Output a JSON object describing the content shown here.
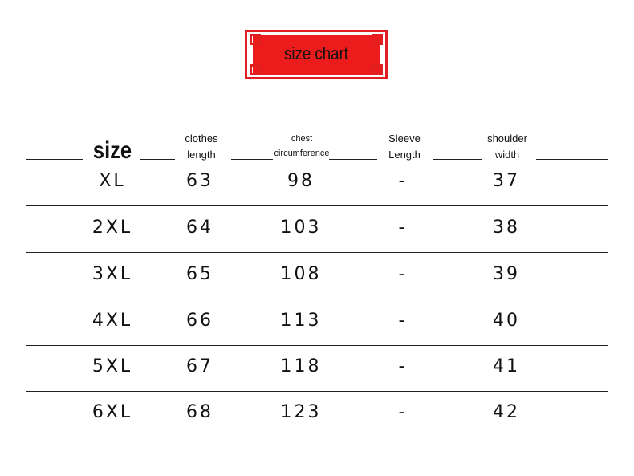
{
  "title": "size chart",
  "colors": {
    "banner": "#ec1c1c",
    "text": "#111111"
  },
  "headers": {
    "size": "size",
    "clothes_length": [
      "clothes",
      "length"
    ],
    "chest": [
      "chest",
      "circumference"
    ],
    "sleeve": [
      "Sleeve",
      "Length"
    ],
    "shoulder": [
      "shoulder",
      "width"
    ]
  },
  "rows": [
    {
      "size": "XL",
      "clothes_length": "63",
      "chest": "98",
      "sleeve": "-",
      "shoulder": "37"
    },
    {
      "size": "2XL",
      "clothes_length": "64",
      "chest": "103",
      "sleeve": "-",
      "shoulder": "38"
    },
    {
      "size": "3XL",
      "clothes_length": "65",
      "chest": "108",
      "sleeve": "-",
      "shoulder": "39"
    },
    {
      "size": "4XL",
      "clothes_length": "66",
      "chest": "113",
      "sleeve": "-",
      "shoulder": "40"
    },
    {
      "size": "5XL",
      "clothes_length": "67",
      "chest": "118",
      "sleeve": "-",
      "shoulder": "41"
    },
    {
      "size": "6XL",
      "clothes_length": "68",
      "chest": "123",
      "sleeve": "-",
      "shoulder": "42"
    }
  ]
}
